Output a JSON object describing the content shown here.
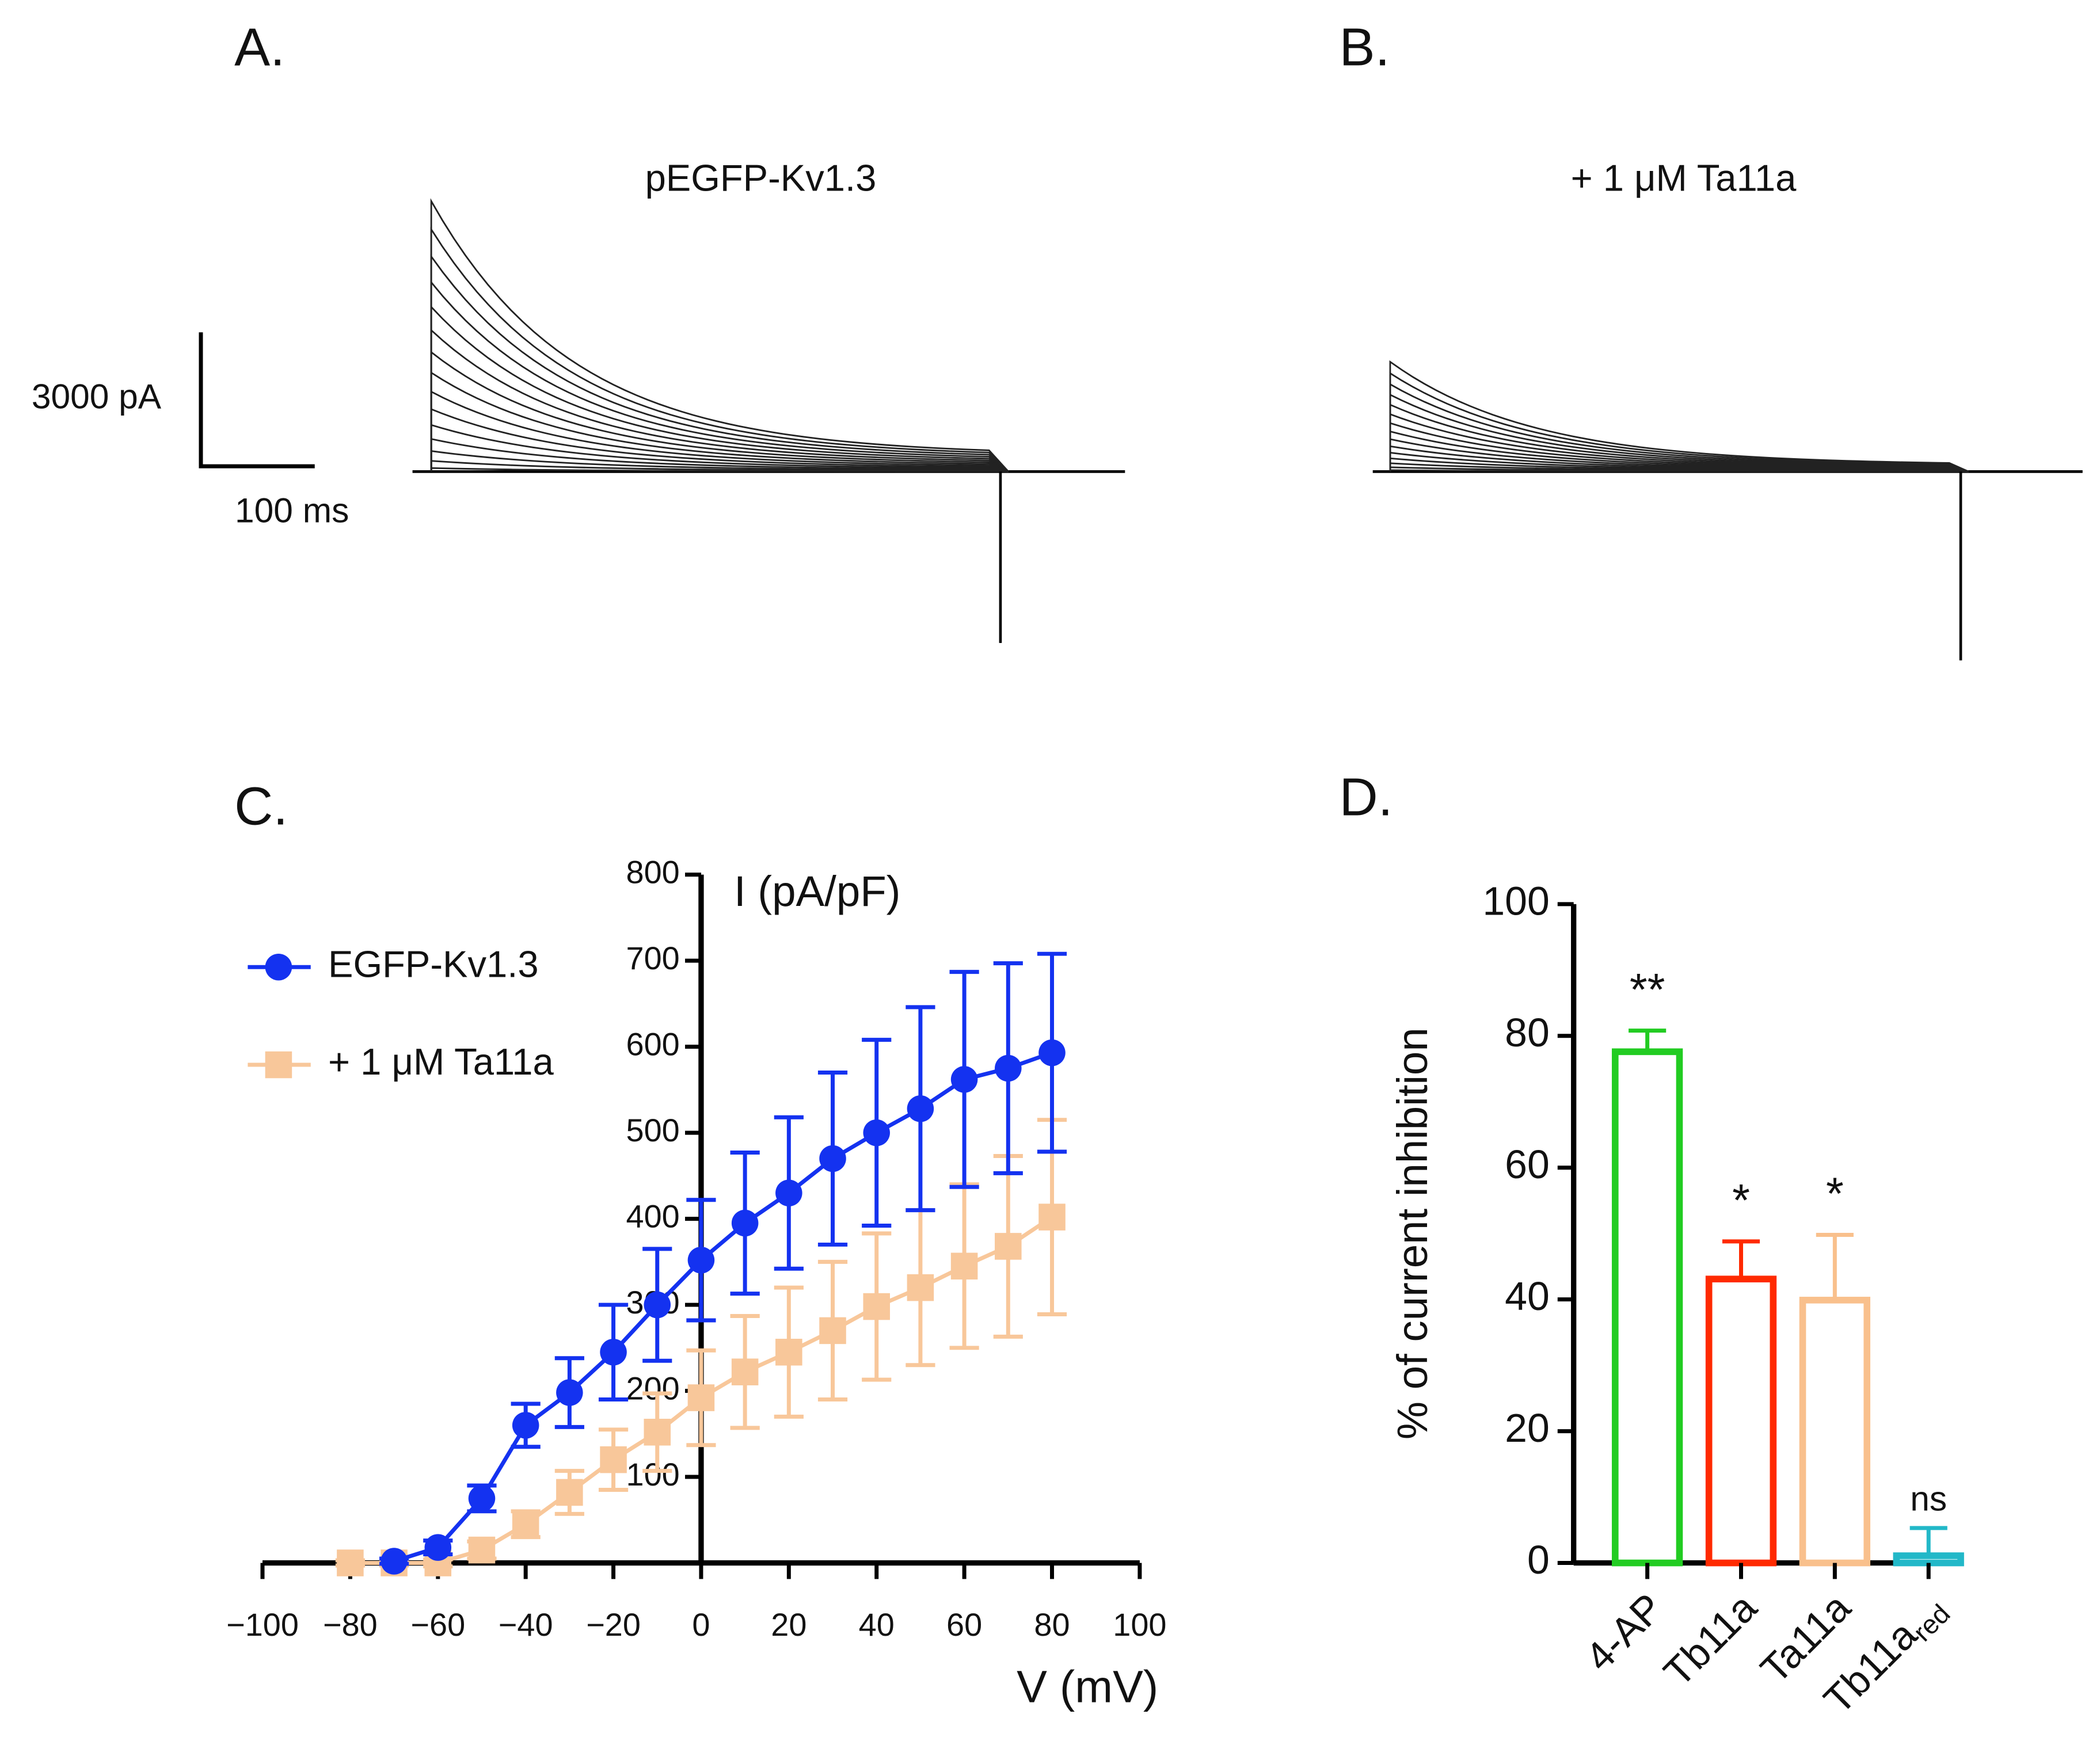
{
  "panels": {
    "a": {
      "label": "A.",
      "title": "pEGFP-Kv1.3",
      "scale_current": "3000 pA",
      "scale_time": "100 ms"
    },
    "b": {
      "label": "B.",
      "title": "+ 1 μM Ta11a"
    },
    "c": {
      "label": "C."
    },
    "d": {
      "label": "D."
    }
  },
  "chart_data": [
    {
      "type": "line",
      "xlabel": "V (mV)",
      "ylabel": "I (pA/pF)",
      "x": [
        -80,
        -70,
        -60,
        -50,
        -40,
        -30,
        -20,
        -10,
        0,
        10,
        20,
        30,
        40,
        50,
        60,
        70,
        80
      ],
      "series": [
        {
          "name": "EGFP-Kv1.3",
          "color": "#1432f0",
          "marker": "circle",
          "values": [
            null,
            2,
            18,
            75,
            160,
            198,
            245,
            300,
            352,
            395,
            430,
            470,
            500,
            528,
            562,
            575,
            593
          ],
          "errors": [
            null,
            3,
            8,
            15,
            25,
            40,
            55,
            65,
            70,
            82,
            88,
            100,
            108,
            118,
            125,
            122,
            115
          ]
        },
        {
          "name": "+ 1 μM Ta11a",
          "color": "#f8c79a",
          "marker": "square",
          "values": [
            0,
            0,
            0,
            15,
            45,
            82,
            120,
            152,
            192,
            222,
            245,
            270,
            298,
            320,
            345,
            368,
            402
          ],
          "errors": [
            3,
            3,
            4,
            10,
            15,
            25,
            35,
            45,
            55,
            65,
            75,
            80,
            85,
            90,
            95,
            105,
            113
          ]
        }
      ],
      "xlim": [
        -100,
        100
      ],
      "xticks": [
        {
          "value": -100,
          "label": "−100"
        },
        {
          "value": -80,
          "label": "−80"
        },
        {
          "value": -60,
          "label": "−60"
        },
        {
          "value": -40,
          "label": "−40"
        },
        {
          "value": -20,
          "label": "−20"
        },
        0,
        20,
        40,
        60,
        80,
        100
      ],
      "ylim": [
        0,
        800
      ],
      "yticks": [
        100,
        200,
        300,
        400,
        500,
        600,
        700,
        800
      ],
      "legend": "upper left"
    },
    {
      "type": "bar",
      "ylabel": "% of current inhibition",
      "categories": [
        "4-AP",
        "Tb11a",
        "Ta11a",
        "Tb11a"
      ],
      "category_subscripts": [
        null,
        null,
        null,
        "red"
      ],
      "values": [
        78,
        43.5,
        40.3,
        1.5
      ],
      "errors": [
        2.8,
        5.3,
        9.5,
        3.8
      ],
      "colors": [
        "#22cc22",
        "#ff2a00",
        "#f9c08c",
        "#22b8c8"
      ],
      "annotations": [
        "**",
        "*",
        "*",
        "ns"
      ],
      "ylim": [
        0,
        100
      ],
      "yticks": [
        0,
        20,
        40,
        60,
        80,
        100
      ]
    }
  ]
}
